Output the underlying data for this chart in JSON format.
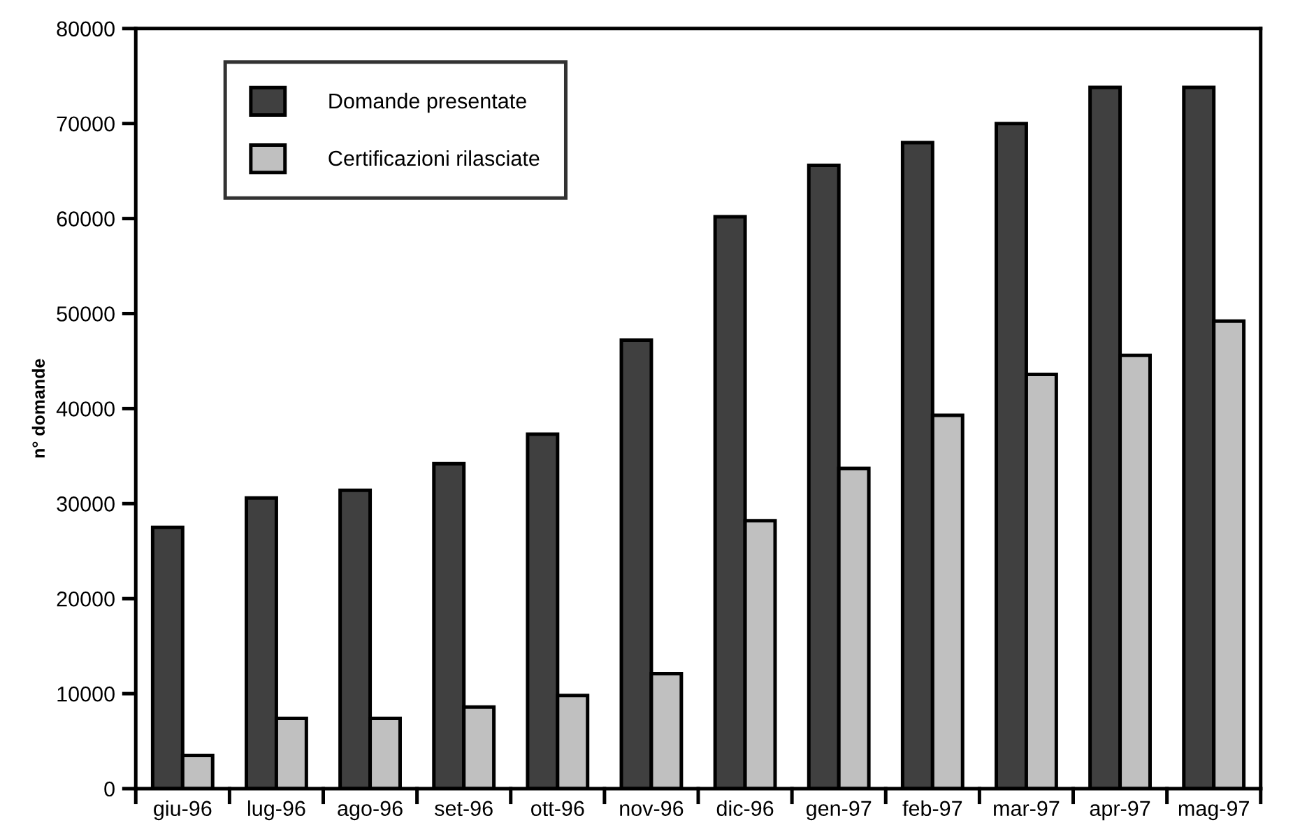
{
  "chart_data": {
    "type": "bar",
    "ylabel": "n° domande",
    "categories": [
      "giu-96",
      "lug-96",
      "ago-96",
      "set-96",
      "ott-96",
      "nov-96",
      "dic-96",
      "gen-97",
      "feb-97",
      "mar-97",
      "apr-97",
      "mag-97"
    ],
    "series": [
      {
        "name": "Domande presentate",
        "color": "#404040",
        "values": [
          27500,
          30600,
          31400,
          34200,
          37300,
          47200,
          60200,
          65600,
          68000,
          70000,
          73800,
          73800
        ]
      },
      {
        "name": "Certificazioni rilasciate",
        "color": "#c0c0c0",
        "values": [
          3500,
          7400,
          7400,
          8600,
          9800,
          12100,
          28200,
          33700,
          39300,
          43600,
          45600,
          49200
        ]
      }
    ],
    "ylim": [
      0,
      80000
    ],
    "yticks": [
      0,
      10000,
      20000,
      30000,
      40000,
      50000,
      60000,
      70000,
      80000
    ],
    "grid": false,
    "legend": "top left"
  }
}
